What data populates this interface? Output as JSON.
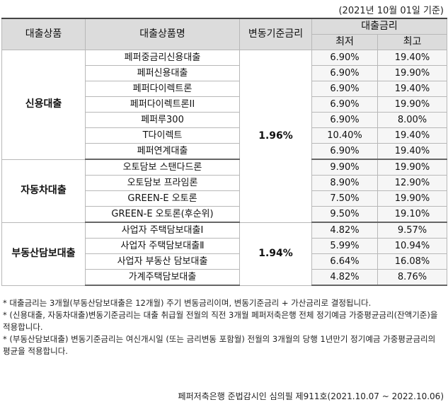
{
  "header": {
    "date_note": "(2021년 10월 01일 기준)"
  },
  "table": {
    "headers": {
      "category": "대출상품",
      "product_name": "대출상품명",
      "base_rate": "변동기준금리",
      "loan_rate": "대출금리",
      "min": "최저",
      "max": "최고"
    },
    "groups": [
      {
        "category": "신용대출",
        "base_rate": "1.96%",
        "rows": [
          {
            "name": "페퍼중금리신용대출",
            "min": "6.90%",
            "max": "19.40%"
          },
          {
            "name": "페퍼신용대출",
            "min": "6.90%",
            "max": "19.90%"
          },
          {
            "name": "페퍼다이렉트론",
            "min": "6.90%",
            "max": "19.40%"
          },
          {
            "name": "페퍼다이렉트론II",
            "min": "6.90%",
            "max": "19.90%"
          },
          {
            "name": "페퍼루300",
            "min": "6.90%",
            "max": "8.00%"
          },
          {
            "name": "T다이렉트",
            "min": "10.40%",
            "max": "19.40%"
          },
          {
            "name": "페퍼연계대출",
            "min": "6.90%",
            "max": "19.40%"
          }
        ]
      },
      {
        "category": "자동차대출",
        "rows": [
          {
            "name": "오토담보 스탠다드론",
            "min": "9.90%",
            "max": "19.90%"
          },
          {
            "name": "오토담보 프라임론",
            "min": "8.90%",
            "max": "12.90%"
          },
          {
            "name": "GREEN-E 오토론",
            "min": "7.50%",
            "max": "19.90%"
          },
          {
            "name": "GREEN-E 오토론(후순위)",
            "min": "9.50%",
            "max": "19.10%"
          }
        ]
      },
      {
        "category": "부동산담보대출",
        "base_rate": "1.94%",
        "rows": [
          {
            "name": "사업자 주택담보대출Ⅰ",
            "min": "4.82%",
            "max": "9.57%"
          },
          {
            "name": "사업자 주택담보대출Ⅱ",
            "min": "5.99%",
            "max": "10.94%"
          },
          {
            "name": "사업자 부동산 담보대출",
            "min": "6.64%",
            "max": "16.08%"
          },
          {
            "name": "가계주택담보대출",
            "min": "4.82%",
            "max": "8.76%"
          }
        ]
      }
    ]
  },
  "notes": [
    "* 대출금리는 3개월(부동산담보대출은 12개월) 주기 변동금리이며, 변동기준금리 + 가산금리로 결정됩니다.",
    "* (신용대출, 자동차대출)변동기준금리는 대출 취급월 전월의 직전 3개월 페퍼저축은행 전체 정기예금 가중평균금리(잔액기준)을 적용합니다.",
    "* (부동산담보대출) 변동기준금리는 여신개시일 (또는 금리변동 포함월) 전월의 3개월의 당행 1년만기 정기예금 가중평균금리의 평균을 적용합니다."
  ],
  "footer": {
    "approval": "페퍼저축은행 준법감시인 심의필 제911호(2021.10.07 ~ 2022.10.06)"
  }
}
